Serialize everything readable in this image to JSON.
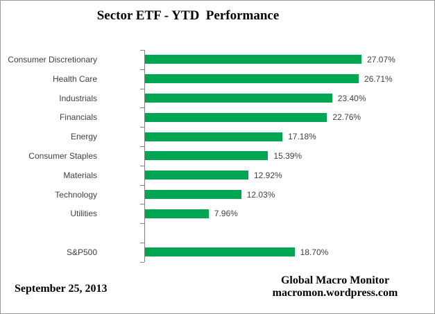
{
  "title": "Sector ETF - YTD  Performance",
  "chart_data": {
    "type": "bar",
    "orientation": "horizontal",
    "title": "Sector ETF - YTD  Performance",
    "value_suffix": "%",
    "bar_color": "#00A651",
    "axis_color": "#808080",
    "text_color": "#3F3F3F",
    "xlim": [
      0,
      30
    ],
    "grid": false,
    "legend": false,
    "categories": [
      "Consumer Discretionary",
      "Health Care",
      "Industrials",
      "Financials",
      "Energy",
      "Consumer Staples",
      "Materials",
      "Technology",
      "Utilities",
      "",
      "S&P500"
    ],
    "rows": [
      {
        "label": "Consumer Discretionary",
        "value": 27.07,
        "display": "27.07%"
      },
      {
        "label": "Health Care",
        "value": 26.71,
        "display": "26.71%"
      },
      {
        "label": "Industrials",
        "value": 23.4,
        "display": "23.40%"
      },
      {
        "label": "Financials",
        "value": 22.76,
        "display": "22.76%"
      },
      {
        "label": "Energy",
        "value": 17.18,
        "display": "17.18%"
      },
      {
        "label": "Consumer Staples",
        "value": 15.39,
        "display": "15.39%"
      },
      {
        "label": "Materials",
        "value": 12.92,
        "display": "12.92%"
      },
      {
        "label": "Technology",
        "value": 12.03,
        "display": "12.03%"
      },
      {
        "label": "Utilities",
        "value": 7.96,
        "display": "7.96%"
      },
      {
        "label": "",
        "value": null,
        "display": ""
      },
      {
        "label": "S&P500",
        "value": 18.7,
        "display": "18.70%"
      }
    ]
  },
  "footer": {
    "date": "September 25, 2013",
    "credit_line1": "Global Macro Monitor",
    "credit_line2": "macromon.wordpress.com"
  }
}
